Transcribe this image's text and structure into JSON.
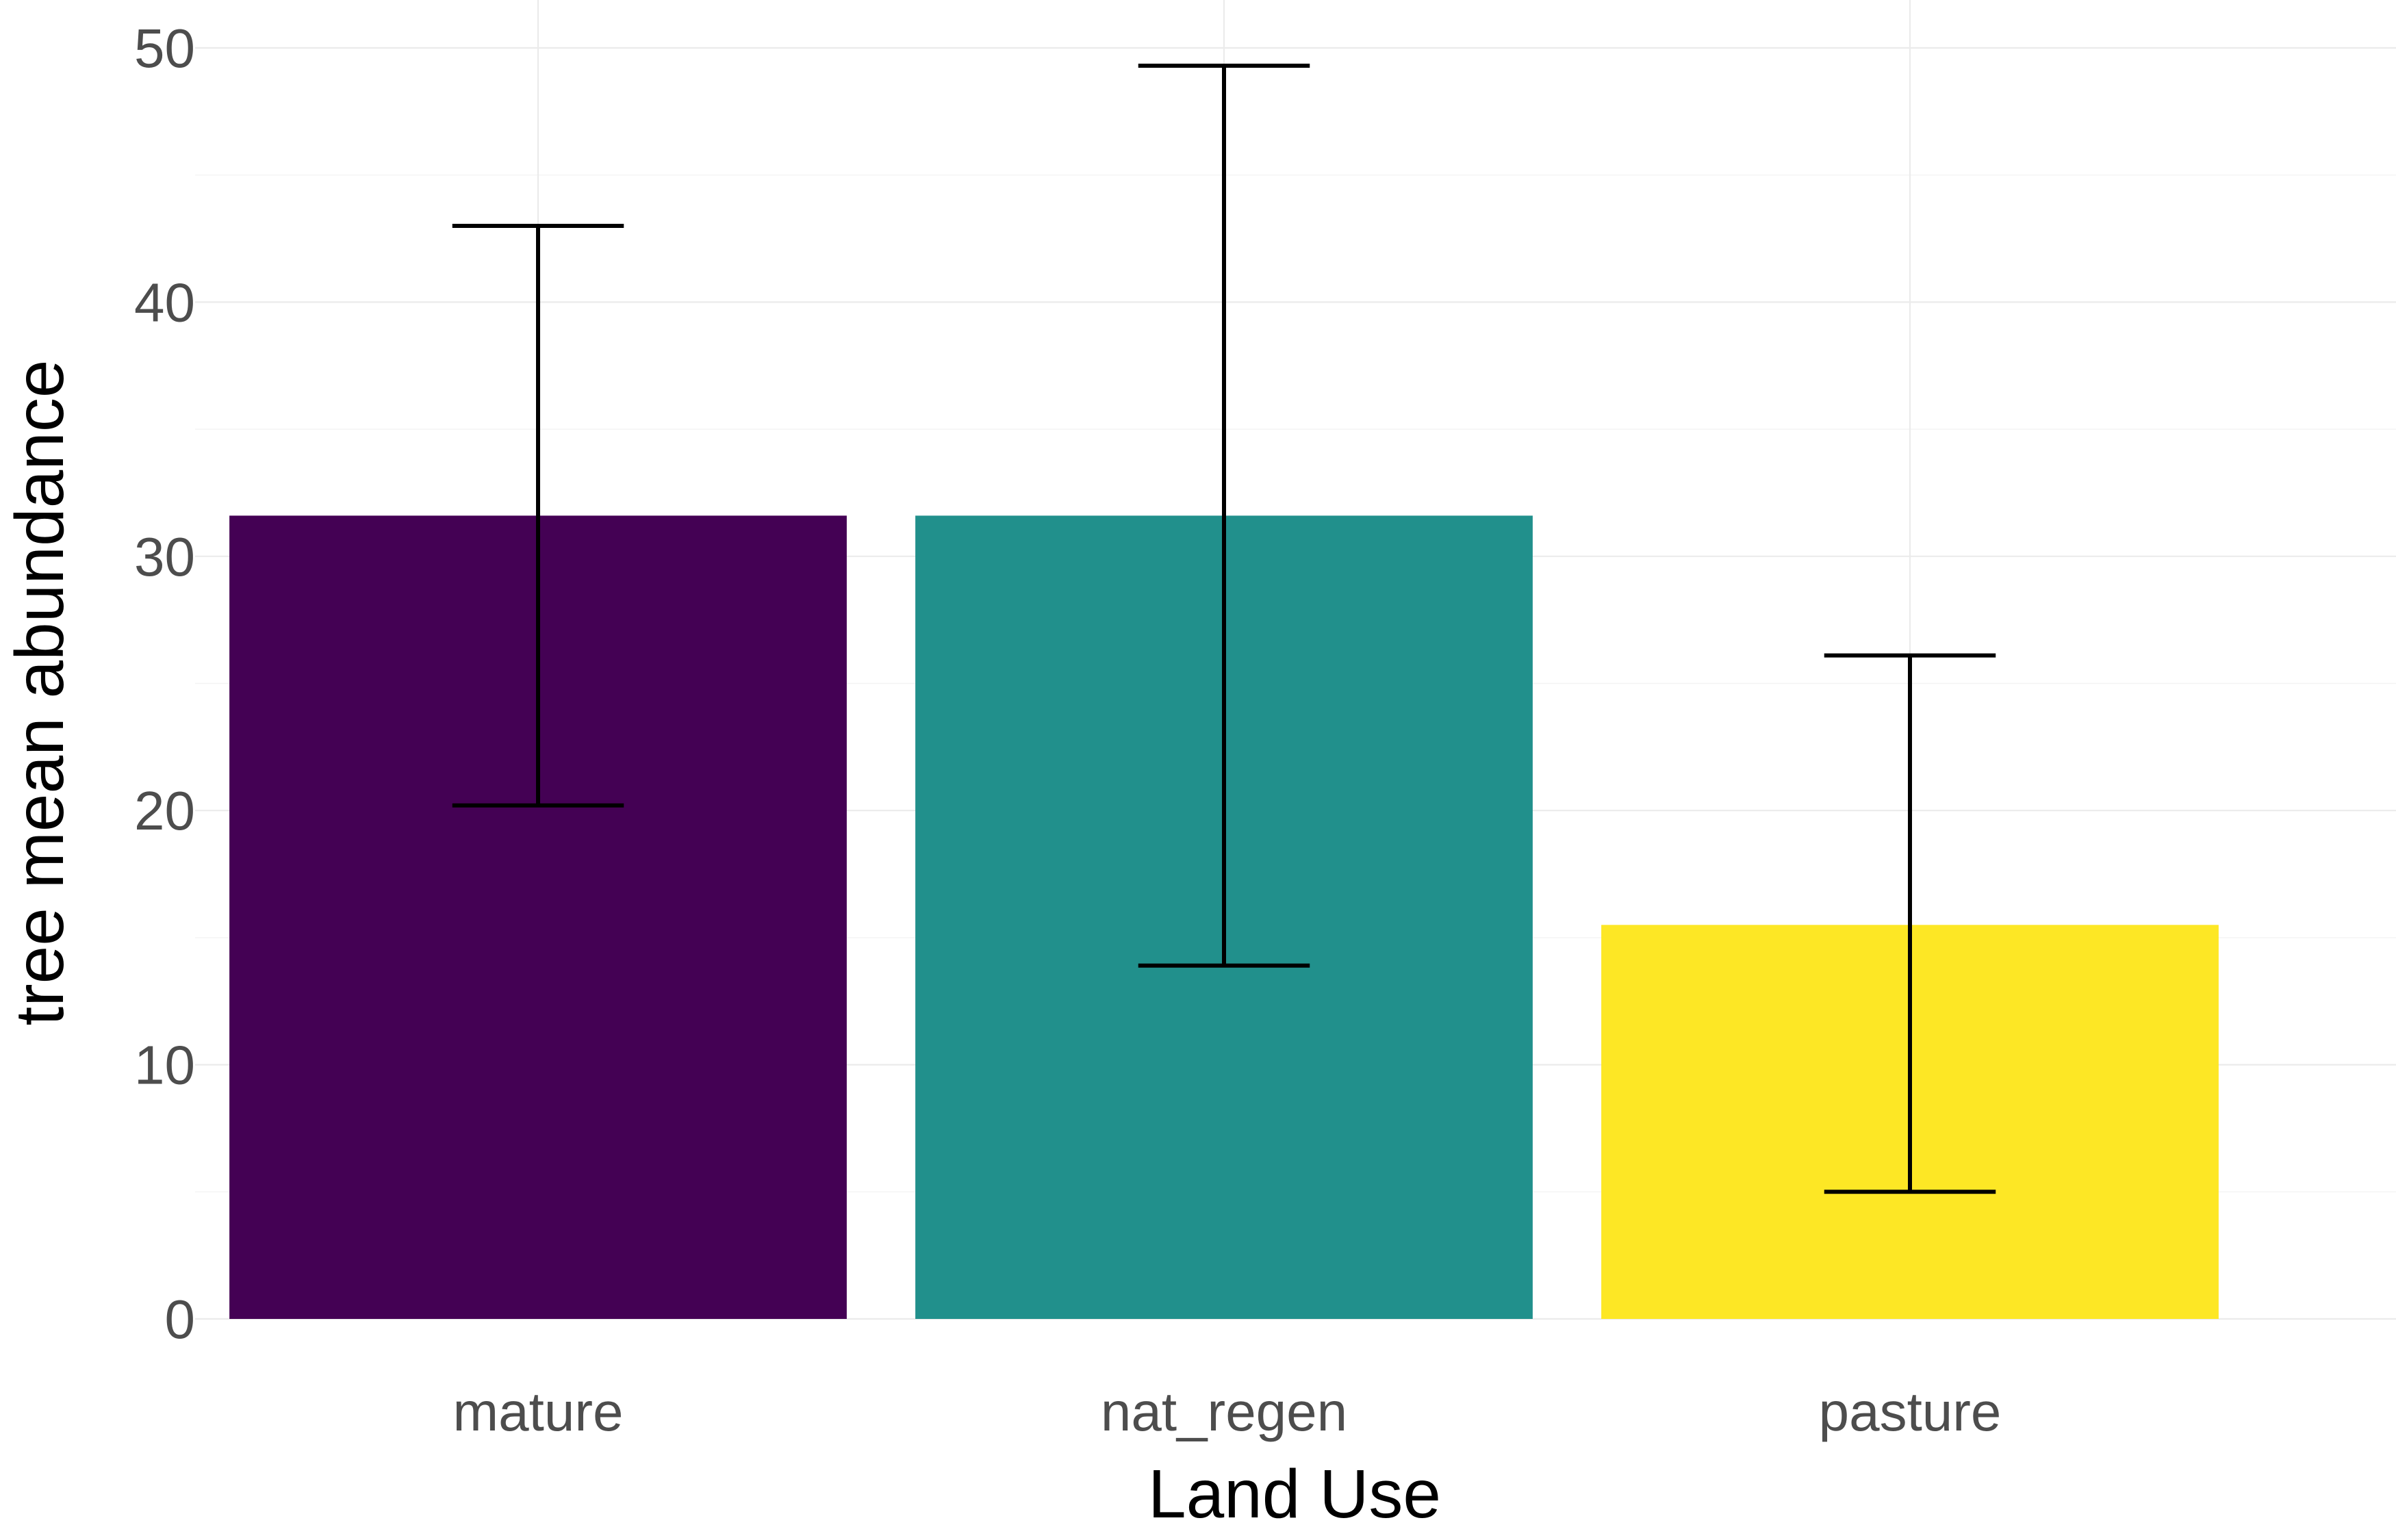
{
  "chart_data": {
    "type": "bar",
    "title": "",
    "xlabel": "Land Use",
    "ylabel": "tree mean abundance",
    "categories": [
      "mature",
      "nat_regen",
      "pasture"
    ],
    "values": [
      31.6,
      31.6,
      15.5
    ],
    "error_bars": [
      {
        "low": 20.2,
        "high": 43.0
      },
      {
        "low": 13.9,
        "high": 49.3
      },
      {
        "low": 5.0,
        "high": 26.1
      }
    ],
    "colors": [
      "#440154",
      "#21908c",
      "#fde725"
    ],
    "ylim": [
      0,
      50
    ],
    "yticks": [
      0,
      10,
      20,
      30,
      40,
      50
    ],
    "grid": true,
    "legend": "none"
  }
}
